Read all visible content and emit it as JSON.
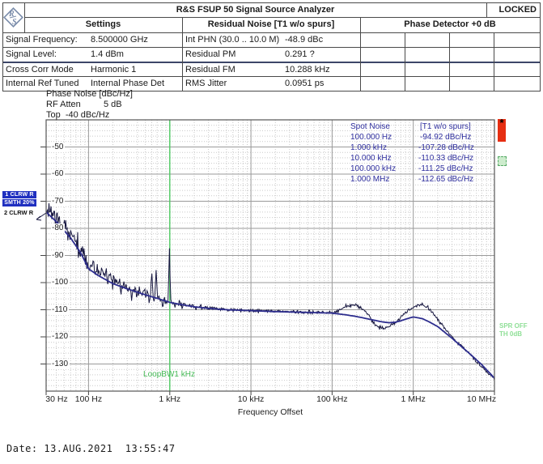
{
  "window": {
    "title": "R&S FSUP 50 Signal Source Analyzer",
    "status": "LOCKED"
  },
  "logo_text": "R&S",
  "table": {
    "section_titles": [
      "Settings",
      "Residual Noise [T1 w/o spurs]",
      "Phase Detector +0 dB"
    ],
    "settings_rows": [
      {
        "label": "Signal Frequency:",
        "value": "8.500000 GHz"
      },
      {
        "label": "Signal Level:",
        "value": "1.4 dBm"
      },
      {
        "label": "Cross Corr Mode",
        "value": "Harmonic 1"
      },
      {
        "label": "Internal Ref Tuned",
        "value": "Internal Phase Det"
      }
    ],
    "residual_rows": [
      {
        "label": "Int PHN (30.0 .. 10.0 M)",
        "value": "-48.9 dBc"
      },
      {
        "label": "Residual PM",
        "value": "0.291 ?"
      },
      {
        "label": "Residual FM",
        "value": "10.288 kHz"
      },
      {
        "label": "RMS Jitter",
        "value": "0.0951 ps"
      }
    ]
  },
  "chart_header": {
    "title": "Phase Noise [dBc/Hz]",
    "rf_atten_label": "RF Atten",
    "rf_atten_value": "5 dB",
    "top_label": "Top  -40 dBc/Hz"
  },
  "trace_markers": {
    "trace1": "1 CLRW R",
    "trace1_smoothing": "SMTH 20%",
    "trace2": "2 CLRW R",
    "spur_status": "SPR OFF",
    "threshold": "TH 0dB",
    "loop_bw": "LoopBW1 kHz"
  },
  "spot_noise": {
    "title": "Spot Noise",
    "trace_label": "[T1 w/o spurs]",
    "rows": [
      [
        "100.000 Hz",
        "-94.92 dBc/Hz"
      ],
      [
        "1.000 kHz",
        "-107.28 dBc/Hz"
      ],
      [
        "10.000 kHz",
        "-110.33 dBc/Hz"
      ],
      [
        "100.000 kHz",
        "-111.25 dBc/Hz"
      ],
      [
        "1.000 MHz",
        "-112.65 dBc/Hz"
      ]
    ]
  },
  "footer": {
    "date_line": "Date: 13.AUG.2021  13:55:47"
  },
  "colors": {
    "accent_text": "#2e2e9e",
    "trace_smooth": "#2d2d8e",
    "trace_raw": "#16163f",
    "grid_major": "#9a9a9a",
    "grid_minor": "#c9c9c9",
    "green_line": "#4ecb63",
    "green_text": "#46bb57",
    "green_text_light": "#8fdf97",
    "marker_bg": "#2030c0",
    "marker_red": "#e62e12",
    "border": "#4a4a4a"
  },
  "chart_data": {
    "type": "line",
    "title": "Phase Noise [dBc/Hz]",
    "xlabel": "Frequency Offset",
    "ylabel": "Phase Noise [dBc/Hz]",
    "x_log": true,
    "x_range_hz": [
      30,
      10000000
    ],
    "x_ticks": [
      {
        "hz": 30,
        "label": "30 Hz"
      },
      {
        "hz": 100,
        "label": "100 Hz"
      },
      {
        "hz": 1000,
        "label": "1 kHz"
      },
      {
        "hz": 10000,
        "label": "10 kHz"
      },
      {
        "hz": 100000,
        "label": "100 kHz"
      },
      {
        "hz": 1000000,
        "label": "1 MHz"
      },
      {
        "hz": 10000000,
        "label": "10 MHz"
      }
    ],
    "y_top_dbc": -40,
    "y_bottom_dbc": -140,
    "y_tick_step": 10,
    "y_ticks": [
      -50,
      -60,
      -70,
      -80,
      -90,
      -100,
      -110,
      -120,
      -130
    ],
    "loop_bw_hz": 1000,
    "spot_noise_dbc_hz": {
      "100 Hz": -94.92,
      "1 kHz": -107.28,
      "10 kHz": -110.33,
      "100 kHz": -111.25,
      "1 MHz": -112.65
    },
    "series": [
      {
        "name": "Trace 1 smoothed (SMTH 20%)",
        "noisy": false,
        "points": [
          [
            30,
            -74
          ],
          [
            40,
            -77.5
          ],
          [
            60,
            -83.5
          ],
          [
            80,
            -89
          ],
          [
            100,
            -94.9
          ],
          [
            130,
            -97.3
          ],
          [
            200,
            -100.4
          ],
          [
            300,
            -102.3
          ],
          [
            500,
            -104.5
          ],
          [
            700,
            -105.8
          ],
          [
            1000,
            -107.28
          ],
          [
            1500,
            -108.3
          ],
          [
            2000,
            -108.9
          ],
          [
            3000,
            -109.5
          ],
          [
            5000,
            -110
          ],
          [
            10000,
            -110.33
          ],
          [
            20000,
            -110.7
          ],
          [
            50000,
            -111
          ],
          [
            100000,
            -111.25
          ],
          [
            150000,
            -111.9
          ],
          [
            200000,
            -112.5
          ],
          [
            300000,
            -113.6
          ],
          [
            400000,
            -114.4
          ],
          [
            500000,
            -114.8
          ],
          [
            600000,
            -114.6
          ],
          [
            700000,
            -114.1
          ],
          [
            800000,
            -113.5
          ],
          [
            1000000,
            -112.65
          ],
          [
            1300000,
            -113.3
          ],
          [
            1600000,
            -114.6
          ],
          [
            2000000,
            -116.2
          ],
          [
            3000000,
            -120.5
          ],
          [
            4000000,
            -123.8
          ],
          [
            5000000,
            -126.3
          ],
          [
            7000000,
            -130.3
          ],
          [
            10000000,
            -135.2
          ]
        ]
      },
      {
        "name": "Trace 2 raw",
        "noisy": true,
        "points": [
          [
            30,
            -73.2
          ],
          [
            40,
            -76.2
          ],
          [
            60,
            -82
          ],
          [
            80,
            -87.5
          ],
          [
            100,
            -92.8
          ],
          [
            150,
            -96.8
          ],
          [
            200,
            -99.6
          ],
          [
            300,
            -102
          ],
          [
            500,
            -104.2
          ],
          [
            700,
            -105.6
          ],
          [
            1000,
            -107.3
          ],
          [
            1500,
            -108.3
          ],
          [
            2000,
            -108.8
          ],
          [
            3000,
            -109.4
          ],
          [
            5000,
            -109.9
          ],
          [
            10000,
            -110.3
          ],
          [
            20000,
            -110.6
          ],
          [
            50000,
            -110.9
          ],
          [
            100000,
            -111.2
          ],
          [
            130000,
            -109.6
          ],
          [
            160000,
            -108.2
          ],
          [
            200000,
            -108.4
          ],
          [
            250000,
            -110.2
          ],
          [
            300000,
            -113.2
          ],
          [
            350000,
            -116.2
          ],
          [
            420000,
            -116.8
          ],
          [
            500000,
            -116.3
          ],
          [
            600000,
            -114.8
          ],
          [
            700000,
            -112.9
          ],
          [
            800000,
            -111.2
          ],
          [
            1000000,
            -108.9
          ],
          [
            1200000,
            -108.1
          ],
          [
            1400000,
            -108.4
          ],
          [
            1700000,
            -110.6
          ],
          [
            2000000,
            -113.6
          ],
          [
            3000000,
            -120
          ],
          [
            5000000,
            -126.5
          ],
          [
            8000000,
            -132.8
          ],
          [
            10000000,
            -135.5
          ]
        ]
      }
    ],
    "spurs_up": [
      [
        480,
        -102.5
      ],
      [
        600,
        -95.5
      ],
      [
        680,
        -95
      ],
      [
        990,
        -87
      ]
    ],
    "spurs_down": [
      [
        250,
        -105.5
      ],
      [
        340,
        -107.5
      ],
      [
        560,
        -108.5
      ],
      [
        820,
        -110.5
      ]
    ]
  }
}
